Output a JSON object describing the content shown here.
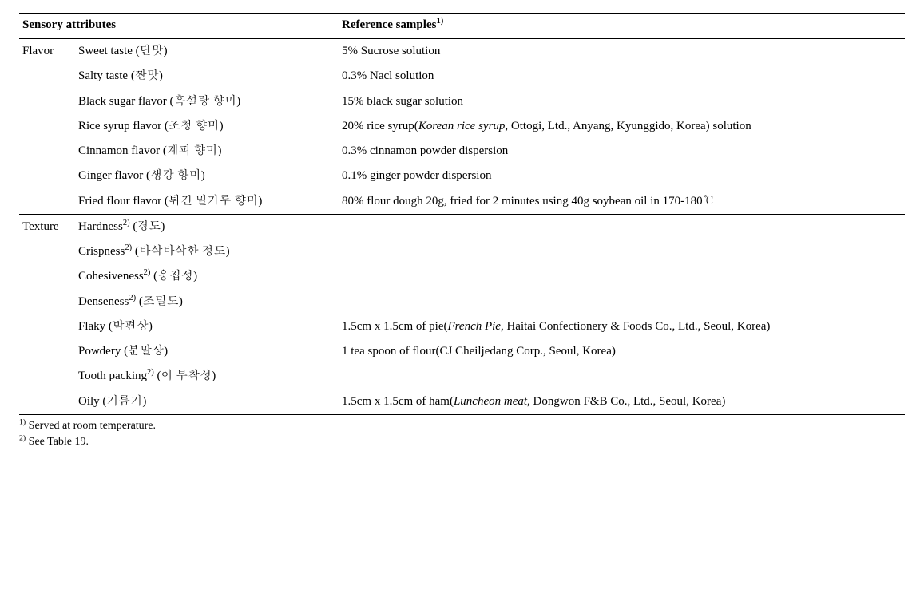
{
  "headers": {
    "col1": "Sensory attributes",
    "col2_pre": "Reference samples",
    "col2_sup": "1)"
  },
  "flavor_label": "Flavor",
  "texture_label": "Texture",
  "flavor": [
    {
      "attr": "Sweet taste (단맛)",
      "ref_plain": "5% Sucrose solution"
    },
    {
      "attr": "Salty taste (짠맛)",
      "ref_plain": "0.3% Nacl solution"
    },
    {
      "attr": "Black sugar flavor (흑설탕 향미)",
      "ref_plain": "15% black sugar solution"
    },
    {
      "attr": "Rice syrup flavor (조청 향미)",
      "ref_pre": "20% rice syrup(",
      "ref_ital": "Korean rice syrup",
      "ref_post": ", Ottogi, Ltd., Anyang, Kyunggido, Korea) solution"
    },
    {
      "attr": "Cinnamon flavor (계피 향미)",
      "ref_plain": "0.3% cinnamon powder dispersion"
    },
    {
      "attr": "Ginger flavor (생강 향미)",
      "ref_plain": "0.1% ginger powder dispersion"
    },
    {
      "attr": "Fried flour flavor (튀긴 밀가루 향미)",
      "ref_plain": "80% flour dough 20g, fried for 2 minutes using 40g soybean oil in 170-180℃"
    }
  ],
  "texture": [
    {
      "attr_pre": "Hardness",
      "attr_sup": "2)",
      "attr_post": " (경도)"
    },
    {
      "attr_pre": "Crispness",
      "attr_sup": "2)",
      "attr_post": " (바삭바삭한 정도)"
    },
    {
      "attr_pre": "Cohesiveness",
      "attr_sup": "2)",
      "attr_post": " (응집성)"
    },
    {
      "attr_pre": "Denseness",
      "attr_sup": "2)",
      "attr_post": " (조밀도)"
    },
    {
      "attr_pre": "Flaky (박편상)",
      "ref_pre": "1.5cm x 1.5cm of pie(",
      "ref_ital": "French Pie",
      "ref_post": ", Haitai Confectionery & Foods Co., Ltd., Seoul, Korea)"
    },
    {
      "attr_pre": "Powdery (분말상)",
      "ref_plain": "1 tea spoon of flour(CJ Cheiljedang Corp., Seoul, Korea)"
    },
    {
      "attr_pre": "Tooth packing",
      "attr_sup": "2)",
      "attr_post": " (이 부착성)"
    },
    {
      "attr_pre": "Oily (기름기)",
      "ref_pre": "1.5cm x 1.5cm of ham(",
      "ref_ital": "Luncheon meat",
      "ref_post": ", Dongwon F&B Co., Ltd., Seoul, Korea)"
    }
  ],
  "footnotes": {
    "f1_sup": "1)",
    "f1_text": " Served at room temperature.",
    "f2_sup": "2)",
    "f2_text": " See Table 19."
  }
}
